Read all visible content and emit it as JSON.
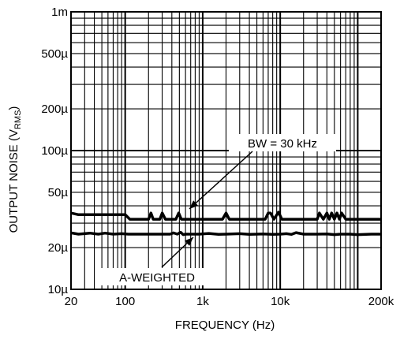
{
  "chart_data": {
    "type": "line",
    "title": "",
    "xlabel": "FREQUENCY (Hz)",
    "ylabel_main": "OUTPUT NOISE (V",
    "ylabel_sub": "RMS",
    "ylabel_close": ")",
    "xscale": "log",
    "yscale": "log",
    "xlim": [
      20,
      200000
    ],
    "ylim": [
      1e-05,
      0.001
    ],
    "grid": true,
    "x_ticks": [
      {
        "value": 20,
        "label": "20"
      },
      {
        "value": 100,
        "label": "100"
      },
      {
        "value": 1000,
        "label": "1k"
      },
      {
        "value": 10000,
        "label": "10k"
      },
      {
        "value": 200000,
        "label": "200k"
      }
    ],
    "y_ticks": [
      {
        "value": 1e-05,
        "label": "10µ"
      },
      {
        "value": 2e-05,
        "label": "20µ"
      },
      {
        "value": 5e-05,
        "label": "50µ"
      },
      {
        "value": 0.0001,
        "label": "100µ"
      },
      {
        "value": 0.0002,
        "label": "200µ"
      },
      {
        "value": 0.0005,
        "label": "500µ"
      },
      {
        "value": 0.001,
        "label": "1m"
      }
    ],
    "series": [
      {
        "name": "BW = 30 kHz",
        "color": "#000000",
        "x": [
          20,
          25,
          40,
          100,
          115,
          200,
          215,
          230,
          260,
          280,
          300,
          330,
          450,
          490,
          530,
          570,
          700,
          1000,
          1800,
          2000,
          2200,
          3000,
          5000,
          6400,
          7000,
          7500,
          8300,
          9500,
          10500,
          20000,
          30000,
          32000,
          36000,
          40000,
          43000,
          46000,
          50000,
          54000,
          58000,
          62000,
          70000,
          100000,
          200000
        ],
        "y": [
          3.55e-05,
          3.45e-05,
          3.45e-05,
          3.45e-05,
          3.2e-05,
          3.2e-05,
          3.55e-05,
          3.2e-05,
          3.2e-05,
          3.2e-05,
          3.55e-05,
          3.2e-05,
          3.2e-05,
          3.55e-05,
          3.2e-05,
          3.2e-05,
          3.2e-05,
          3.2e-05,
          3.2e-05,
          3.55e-05,
          3.2e-05,
          3.2e-05,
          3.2e-05,
          3.2e-05,
          3.55e-05,
          3.55e-05,
          3.2e-05,
          3.6e-05,
          3.2e-05,
          3.2e-05,
          3.2e-05,
          3.55e-05,
          3.2e-05,
          3.55e-05,
          3.2e-05,
          3.55e-05,
          3.2e-05,
          3.55e-05,
          3.2e-05,
          3.55e-05,
          3.2e-05,
          3.2e-05,
          3.2e-05
        ]
      },
      {
        "name": "A-WEIGHTED",
        "color": "#000000",
        "x": [
          20,
          25,
          35,
          45,
          55,
          70,
          90,
          110,
          150,
          200,
          300,
          380,
          420,
          470,
          520,
          560,
          600,
          700,
          900,
          1200,
          1600,
          2000,
          3000,
          4000,
          5000,
          6000,
          8000,
          10000,
          12000,
          14000,
          16000,
          20000,
          30000,
          40000,
          50000,
          60000,
          80000,
          100000,
          150000,
          200000
        ],
        "y": [
          2.55e-05,
          2.5e-05,
          2.54e-05,
          2.5e-05,
          2.54e-05,
          2.5e-05,
          2.52e-05,
          2.5e-05,
          2.5e-05,
          2.5e-05,
          2.5e-05,
          2.5e-05,
          2.55e-05,
          2.5e-05,
          2.58e-05,
          2.48e-05,
          2.5e-05,
          2.5e-05,
          2.5e-05,
          2.53e-05,
          2.49e-05,
          2.5e-05,
          2.52e-05,
          2.49e-05,
          2.5e-05,
          2.51e-05,
          2.49e-05,
          2.5e-05,
          2.52e-05,
          2.49e-05,
          2.56e-05,
          2.5e-05,
          2.5e-05,
          2.51e-05,
          2.48e-05,
          2.5e-05,
          2.5e-05,
          2.48e-05,
          2.5e-05,
          2.5e-05
        ]
      }
    ],
    "annotations": [
      {
        "text": "BW = 30 kHz",
        "target_series": 0
      },
      {
        "text": "A-WEIGHTED",
        "target_series": 1
      }
    ]
  }
}
